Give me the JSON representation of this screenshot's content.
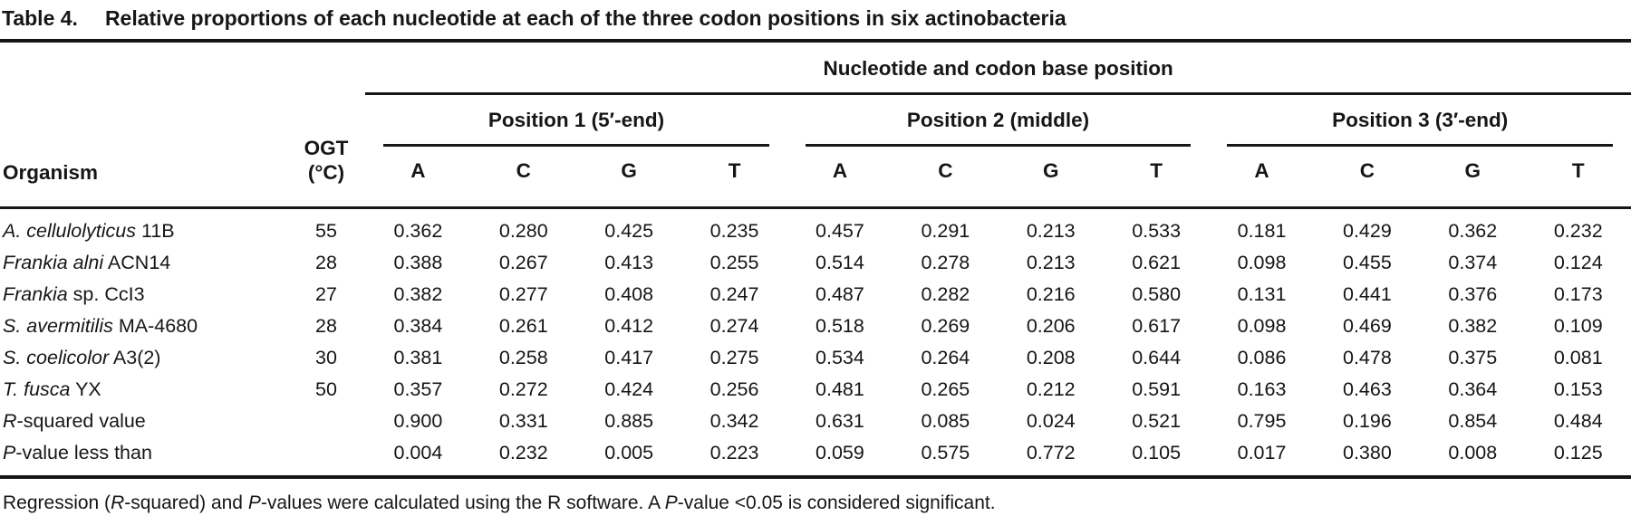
{
  "title": {
    "label": "Table 4.",
    "text": "Relative proportions of each nucleotide at each of the three codon positions in six actinobacteria"
  },
  "header": {
    "spanner": "Nucleotide and codon base position",
    "organism": "Organism",
    "ogt_line1": "OGT",
    "ogt_line2": "(°C)",
    "groups": [
      "Position 1 (5′-end)",
      "Position 2 (middle)",
      "Position 3 (3′-end)"
    ],
    "nucleotides": [
      "A",
      "C",
      "G",
      "T"
    ]
  },
  "rows": [
    {
      "organism_italic": "A. cellulolyticus",
      "organism_rest": " 11B",
      "ogt": "55",
      "values": [
        "0.362",
        "0.280",
        "0.425",
        "0.235",
        "0.457",
        "0.291",
        "0.213",
        "0.533",
        "0.181",
        "0.429",
        "0.362",
        "0.232"
      ]
    },
    {
      "organism_italic": "Frankia alni",
      "organism_rest": " ACN14",
      "ogt": "28",
      "values": [
        "0.388",
        "0.267",
        "0.413",
        "0.255",
        "0.514",
        "0.278",
        "0.213",
        "0.621",
        "0.098",
        "0.455",
        "0.374",
        "0.124"
      ]
    },
    {
      "organism_italic": "Frankia",
      "organism_rest": " sp. CcI3",
      "ogt": "27",
      "values": [
        "0.382",
        "0.277",
        "0.408",
        "0.247",
        "0.487",
        "0.282",
        "0.216",
        "0.580",
        "0.131",
        "0.441",
        "0.376",
        "0.173"
      ]
    },
    {
      "organism_italic": "S. avermitilis",
      "organism_rest": " MA-4680",
      "ogt": "28",
      "values": [
        "0.384",
        "0.261",
        "0.412",
        "0.274",
        "0.518",
        "0.269",
        "0.206",
        "0.617",
        "0.098",
        "0.469",
        "0.382",
        "0.109"
      ]
    },
    {
      "organism_italic": "S. coelicolor",
      "organism_rest": " A3(2)",
      "ogt": "30",
      "values": [
        "0.381",
        "0.258",
        "0.417",
        "0.275",
        "0.534",
        "0.264",
        "0.208",
        "0.644",
        "0.086",
        "0.478",
        "0.375",
        "0.081"
      ]
    },
    {
      "organism_italic": "T. fusca",
      "organism_rest": " YX",
      "ogt": "50",
      "values": [
        "0.357",
        "0.272",
        "0.424",
        "0.256",
        "0.481",
        "0.265",
        "0.212",
        "0.591",
        "0.163",
        "0.463",
        "0.364",
        "0.153"
      ]
    },
    {
      "organism_italic": "R",
      "organism_rest": "-squared value",
      "ogt": "",
      "values": [
        "0.900",
        "0.331",
        "0.885",
        "0.342",
        "0.631",
        "0.085",
        "0.024",
        "0.521",
        "0.795",
        "0.196",
        "0.854",
        "0.484"
      ]
    },
    {
      "organism_italic": "P",
      "organism_rest": "-value less than",
      "ogt": "",
      "values": [
        "0.004",
        "0.232",
        "0.005",
        "0.223",
        "0.059",
        "0.575",
        "0.772",
        "0.105",
        "0.017",
        "0.380",
        "0.008",
        "0.125"
      ]
    }
  ],
  "footnote": {
    "segments": [
      {
        "text": "Regression (",
        "italic": false
      },
      {
        "text": "R",
        "italic": true
      },
      {
        "text": "-squared) and ",
        "italic": false
      },
      {
        "text": "P",
        "italic": true
      },
      {
        "text": "-values were calculated using the R software. A ",
        "italic": false
      },
      {
        "text": "P",
        "italic": true
      },
      {
        "text": "-value <0.05 is considered significant.",
        "italic": false
      }
    ]
  }
}
